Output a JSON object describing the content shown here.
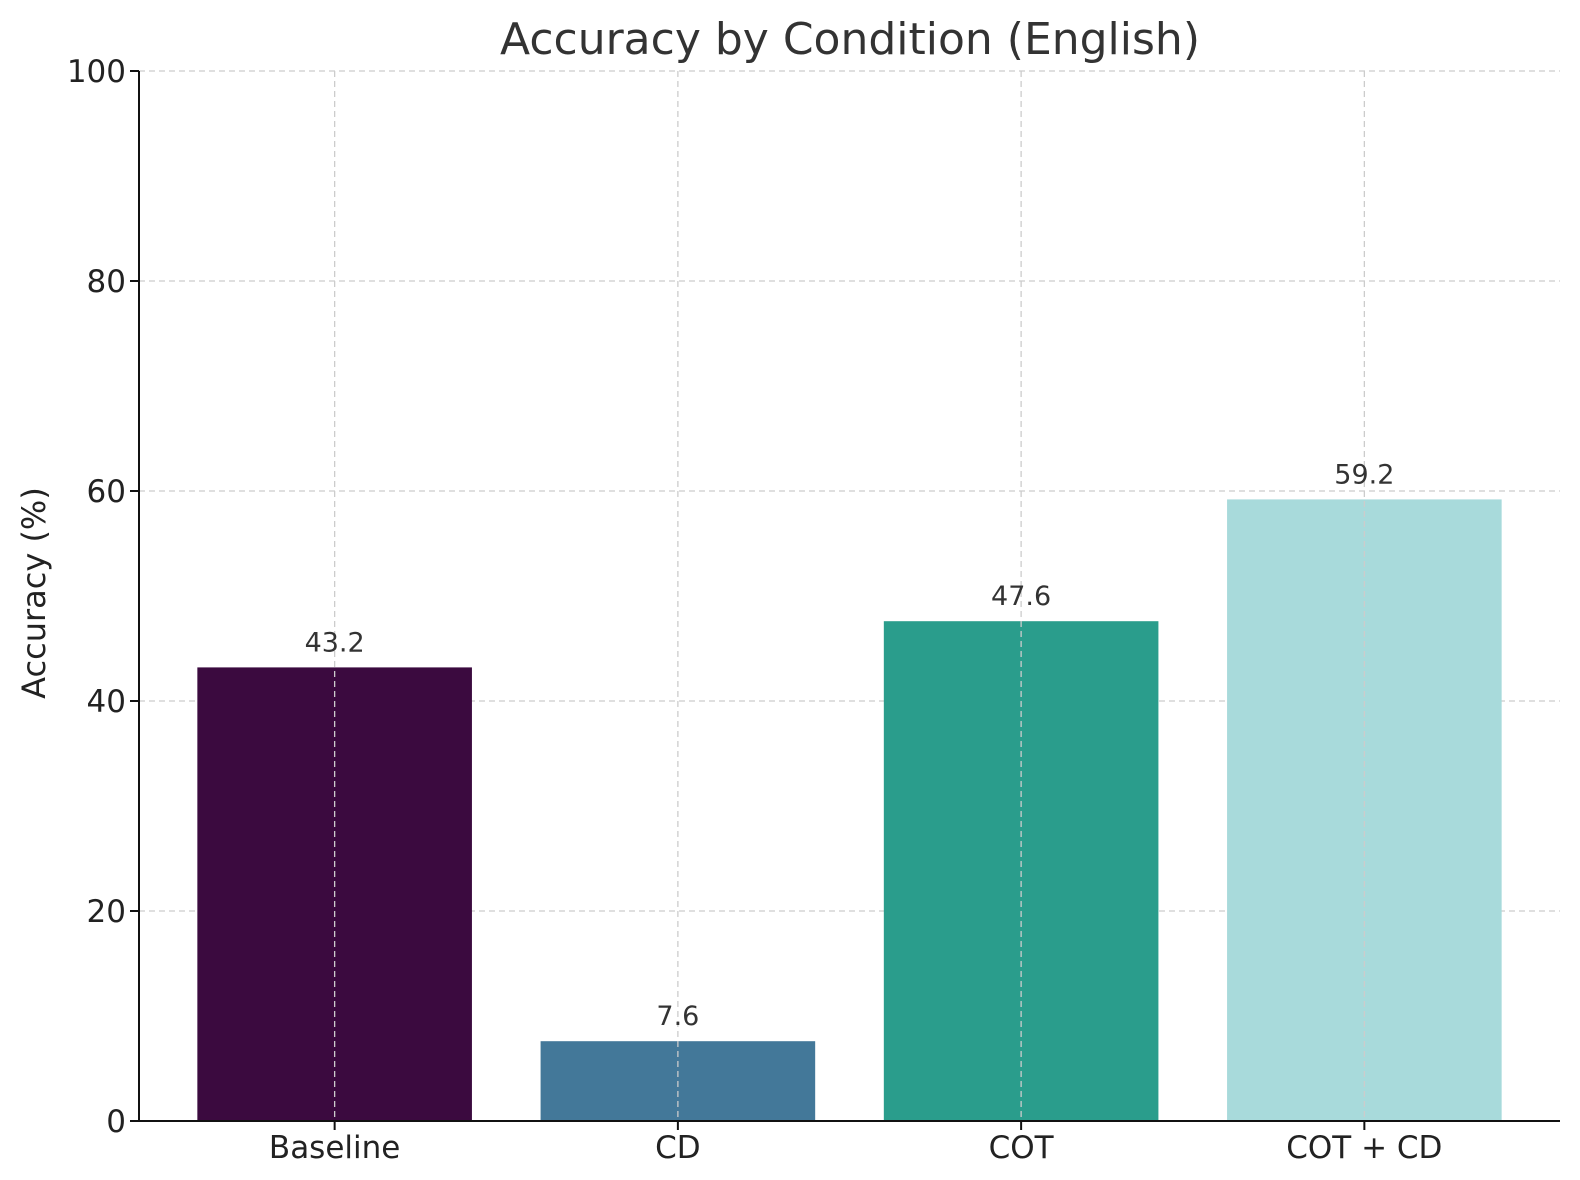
{
  "chart_data": {
    "type": "bar",
    "title": "Accuracy by Condition (English)",
    "xlabel": "",
    "ylabel": "Accuracy (%)",
    "ylim": [
      0,
      100
    ],
    "yticks": [
      0,
      20,
      40,
      60,
      80,
      100
    ],
    "categories": [
      "Baseline",
      "CD",
      "COT",
      "COT + CD"
    ],
    "values": [
      43.2,
      7.6,
      47.6,
      59.2
    ],
    "data_labels": [
      "43.2",
      "7.6",
      "47.6",
      "59.2"
    ],
    "colors": [
      "#3b0a3f",
      "#437899",
      "#2a9d8c",
      "#a8dadb"
    ],
    "grid": true,
    "legend": "none"
  }
}
